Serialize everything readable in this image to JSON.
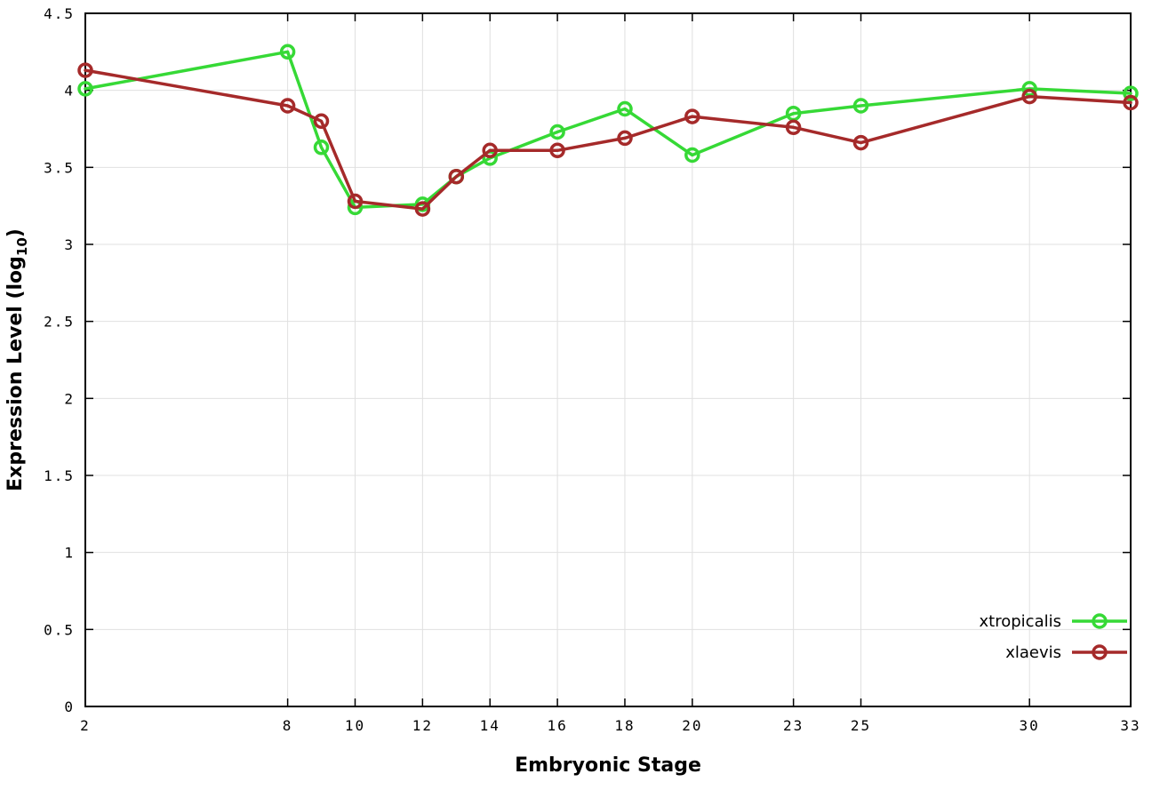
{
  "chart_data": {
    "type": "line",
    "title": "",
    "xlabel": "Embryonic Stage",
    "ylabel": "Expression Level (log10)",
    "ylabel_prefix": "Expression Level (log",
    "ylabel_sub": "10",
    "ylabel_suffix": ")",
    "xlim": [
      2,
      33
    ],
    "ylim": [
      0,
      4.5
    ],
    "x_ticks": [
      2,
      8,
      10,
      12,
      14,
      16,
      18,
      20,
      23,
      25,
      30,
      33
    ],
    "x_tick_labels": [
      "2",
      "8",
      "10",
      "12",
      "14",
      "16",
      "18",
      "20",
      "23",
      "25",
      "30",
      "33"
    ],
    "y_ticks": [
      0,
      0.5,
      1,
      1.5,
      2,
      2.5,
      3,
      3.5,
      4,
      4.5
    ],
    "y_tick_labels": [
      "0",
      "0.5",
      "1",
      "1.5",
      "2",
      "2.5",
      "3",
      "3.5",
      "4",
      "4.5"
    ],
    "grid": true,
    "legend_position": "bottom-right",
    "x": [
      2,
      8,
      9,
      10,
      12,
      13,
      14,
      16,
      18,
      20,
      23,
      25,
      30,
      33
    ],
    "series": [
      {
        "name": "xtropicalis",
        "color": "#36d936",
        "values": [
          4.01,
          4.25,
          3.63,
          3.24,
          3.26,
          3.44,
          3.56,
          3.73,
          3.88,
          3.58,
          3.85,
          3.9,
          4.01,
          3.98
        ]
      },
      {
        "name": "xlaevis",
        "color": "#a52a2a",
        "values": [
          4.13,
          3.9,
          3.8,
          3.28,
          3.23,
          3.44,
          3.61,
          3.61,
          3.69,
          3.83,
          3.76,
          3.66,
          3.96,
          3.92
        ]
      }
    ]
  }
}
